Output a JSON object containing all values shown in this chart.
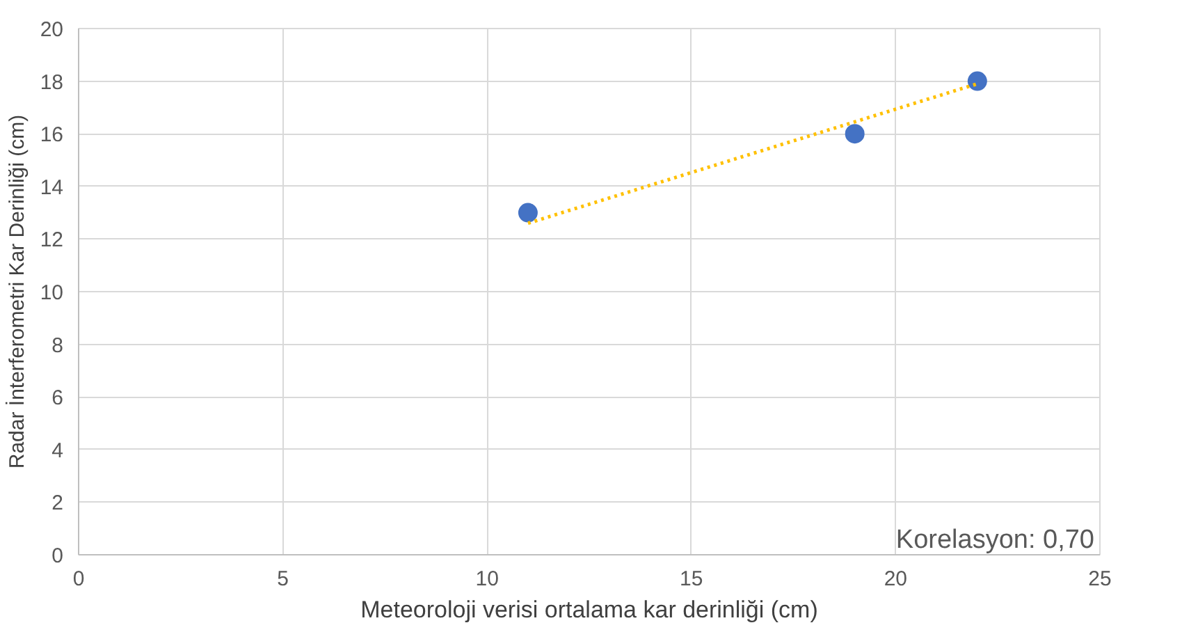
{
  "chart_data": {
    "type": "scatter",
    "xlabel": "Meteoroloji verisi ortalama kar derinliği (cm)",
    "ylabel": "Radar İnterferometri Kar Derinliği (cm)",
    "annotations": [
      "Korelasyon: 0,70"
    ],
    "xlim": [
      0,
      25
    ],
    "xticks": [
      0,
      5,
      10,
      15,
      20,
      25
    ],
    "ylim": [
      0,
      20
    ],
    "yticks": [
      0,
      2,
      4,
      6,
      8,
      10,
      12,
      14,
      16,
      18,
      20
    ],
    "grid": true,
    "series": [
      {
        "color": "#4472c4",
        "marker": "circle",
        "x": [
          11,
          19,
          22
        ],
        "values": [
          13,
          16,
          18
        ]
      },
      {
        "type": "line",
        "color": "#ffc000",
        "line_style": "dotted",
        "x": [
          11,
          22
        ],
        "values": [
          12.6,
          17.9
        ]
      }
    ]
  }
}
